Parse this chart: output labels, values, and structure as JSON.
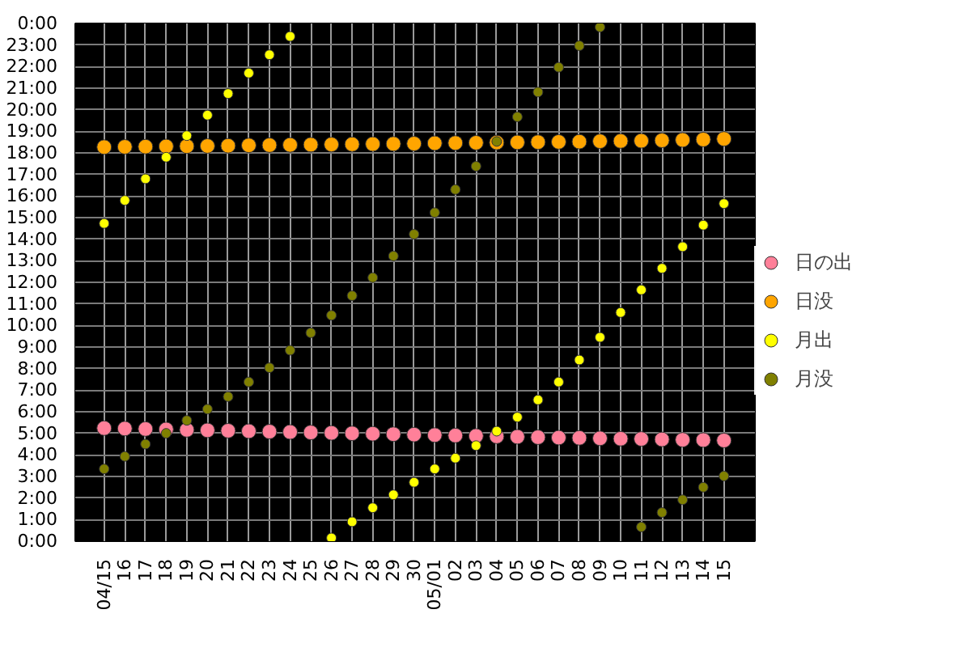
{
  "chart_data": {
    "type": "scatter",
    "categories": [
      "04/15",
      "16",
      "17",
      "18",
      "19",
      "20",
      "21",
      "22",
      "23",
      "24",
      "25",
      "26",
      "27",
      "28",
      "29",
      "30",
      "05/01",
      "02",
      "03",
      "04",
      "05",
      "06",
      "07",
      "08",
      "09",
      "10",
      "11",
      "12",
      "13",
      "14",
      "15"
    ],
    "series": [
      {
        "name": "日の出",
        "color": "#ff8099",
        "values": [
          5.24,
          5.22,
          5.2,
          5.18,
          5.16,
          5.14,
          5.12,
          5.1,
          5.08,
          5.06,
          5.04,
          5.02,
          5.0,
          4.98,
          4.96,
          4.94,
          4.92,
          4.9,
          4.88,
          4.86,
          4.84,
          4.82,
          4.8,
          4.79,
          4.77,
          4.75,
          4.74,
          4.72,
          4.7,
          4.69,
          4.67
        ]
      },
      {
        "name": "日没",
        "color": "#ffa500",
        "values": [
          18.27,
          18.28,
          18.29,
          18.3,
          18.31,
          18.32,
          18.33,
          18.35,
          18.36,
          18.37,
          18.38,
          18.39,
          18.4,
          18.41,
          18.42,
          18.43,
          18.45,
          18.46,
          18.47,
          18.48,
          18.49,
          18.5,
          18.51,
          18.52,
          18.54,
          18.55,
          18.56,
          18.58,
          18.6,
          18.62,
          18.65
        ]
      },
      {
        "name": "月出",
        "color": "#ffff00",
        "values": [
          14.73,
          15.8,
          16.8,
          17.8,
          18.8,
          19.75,
          20.75,
          21.7,
          22.55,
          23.4,
          null,
          0.15,
          0.9,
          1.55,
          2.15,
          2.73,
          3.35,
          3.85,
          4.43,
          5.1,
          5.75,
          6.55,
          7.38,
          8.4,
          9.45,
          10.6,
          11.65,
          12.65,
          13.65,
          14.65,
          15.65
        ]
      },
      {
        "name": "月没",
        "color": "#808000",
        "values": [
          3.35,
          3.93,
          4.5,
          5.0,
          5.6,
          6.12,
          6.7,
          7.38,
          8.04,
          8.85,
          9.66,
          10.47,
          11.38,
          12.22,
          13.22,
          14.23,
          15.23,
          16.3,
          17.38,
          18.53,
          19.67,
          20.82,
          21.97,
          22.97,
          23.83,
          null,
          0.66,
          1.33,
          1.92,
          2.5,
          3.02
        ]
      }
    ],
    "ylim": [
      0,
      24
    ],
    "yticks": [
      {
        "value": 0,
        "label": "0:00"
      },
      {
        "value": 1,
        "label": "1:00"
      },
      {
        "value": 2,
        "label": "2:00"
      },
      {
        "value": 3,
        "label": "3:00"
      },
      {
        "value": 4,
        "label": "4:00"
      },
      {
        "value": 5,
        "label": "5:00"
      },
      {
        "value": 6,
        "label": "6:00"
      },
      {
        "value": 7,
        "label": "7:00"
      },
      {
        "value": 8,
        "label": "8:00"
      },
      {
        "value": 9,
        "label": "9:00"
      },
      {
        "value": 10,
        "label": "10:00"
      },
      {
        "value": 11,
        "label": "11:00"
      },
      {
        "value": 12,
        "label": "12:00"
      },
      {
        "value": 13,
        "label": "13:00"
      },
      {
        "value": 14,
        "label": "14:00"
      },
      {
        "value": 15,
        "label": "15:00"
      },
      {
        "value": 16,
        "label": "16:00"
      },
      {
        "value": 17,
        "label": "17:00"
      },
      {
        "value": 18,
        "label": "18:00"
      },
      {
        "value": 19,
        "label": "19:00"
      },
      {
        "value": 20,
        "label": "20:00"
      },
      {
        "value": 21,
        "label": "21:00"
      },
      {
        "value": 22,
        "label": "22:00"
      },
      {
        "value": 23,
        "label": "23:00"
      },
      {
        "value": 24,
        "label": "0:00"
      }
    ],
    "grid": true,
    "legend": "right",
    "marker": "circle"
  }
}
